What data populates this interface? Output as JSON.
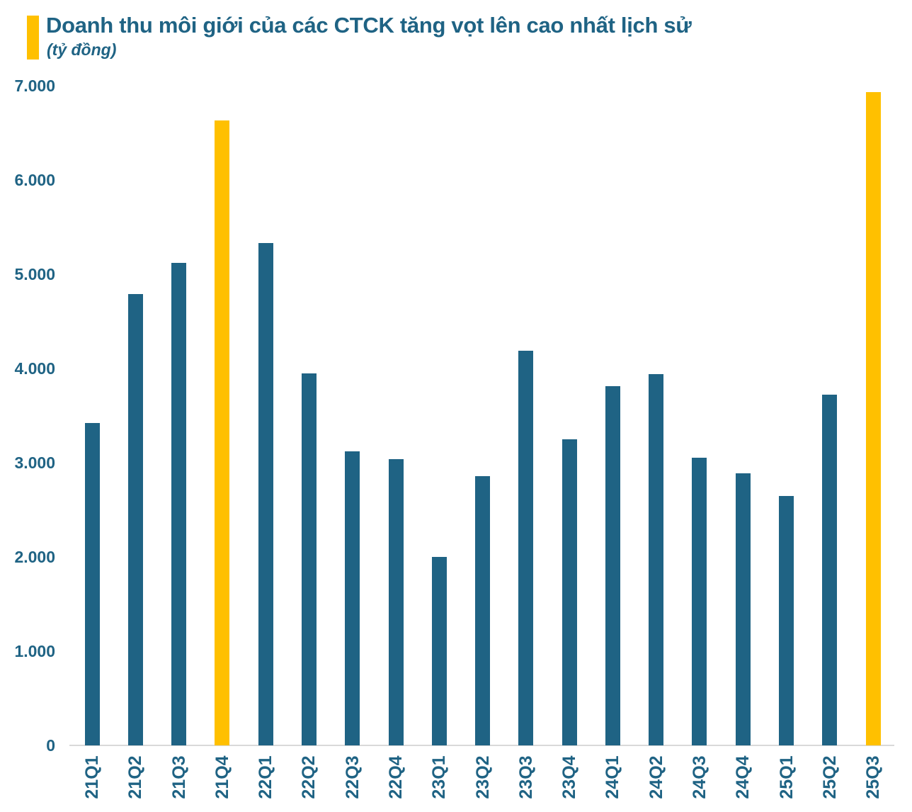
{
  "header": {
    "title": "Doanh thu môi giới của các CTCK tăng vọt lên cao nhất lịch sử",
    "subtitle": "(tỷ đồng)"
  },
  "colors": {
    "bar": "#1F6384",
    "highlight": "#FFC000",
    "text": "#1F6384",
    "axis_line": "#D9D9D9"
  },
  "chart_data": {
    "type": "bar",
    "title": "Doanh thu môi giới của các CTCK tăng vọt lên cao nhất lịch sử",
    "ylabel": "tỷ đồng",
    "xlabel": "",
    "grid": false,
    "legend": false,
    "ylim": [
      0,
      7000
    ],
    "categories": [
      "21Q1",
      "21Q2",
      "21Q3",
      "21Q4",
      "22Q1",
      "22Q2",
      "22Q3",
      "22Q4",
      "23Q1",
      "23Q2",
      "23Q3",
      "23Q4",
      "24Q1",
      "24Q2",
      "24Q3",
      "24Q4",
      "25Q1",
      "25Q2",
      "25Q3"
    ],
    "values": [
      3420,
      4790,
      5120,
      6630,
      5330,
      3950,
      3120,
      3040,
      2000,
      2860,
      4190,
      3250,
      3810,
      3940,
      3050,
      2890,
      2650,
      3720,
      6930
    ],
    "highlight_categories": [
      "21Q4",
      "25Q3"
    ],
    "y_ticks": [
      {
        "label": "7.000",
        "value": 7000
      },
      {
        "label": "6.000",
        "value": 6000
      },
      {
        "label": "5.000",
        "value": 5000
      },
      {
        "label": "4.000",
        "value": 4000
      },
      {
        "label": "3.000",
        "value": 3000
      },
      {
        "label": "2.000",
        "value": 2000
      },
      {
        "label": "1.000",
        "value": 1000
      },
      {
        "label": "0",
        "value": 0
      }
    ]
  }
}
